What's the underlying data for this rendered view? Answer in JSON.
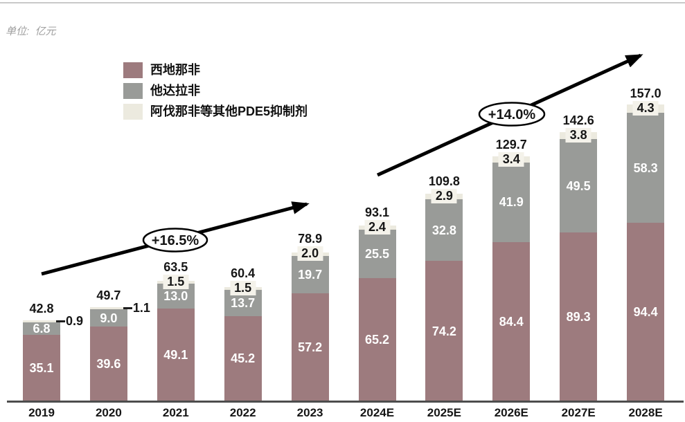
{
  "unit_label": "单位:  亿元",
  "chart_data": {
    "type": "bar",
    "stacked": true,
    "unit": "亿元",
    "legend_position": "top-left",
    "grid": false,
    "y_axis_visible": false,
    "categories": [
      "2019",
      "2020",
      "2021",
      "2022",
      "2023",
      "2024E",
      "2025E",
      "2026E",
      "2027E",
      "2028E"
    ],
    "series": [
      {
        "key": "sildenafil",
        "name": "西地那非",
        "color": "#9d7b7e",
        "values": [
          35.1,
          39.6,
          49.1,
          45.2,
          57.2,
          65.2,
          74.2,
          84.4,
          89.3,
          94.4
        ]
      },
      {
        "key": "tadalafil",
        "name": "他达拉非",
        "color": "#999b98",
        "values": [
          6.8,
          9.0,
          13.0,
          13.7,
          19.7,
          25.5,
          32.8,
          41.9,
          49.5,
          58.3
        ]
      },
      {
        "key": "avanafil-other-pde5",
        "name": "阿伐那非等其他PDE5抑制剂",
        "color": "#eceadf",
        "values": [
          0.9,
          1.1,
          1.5,
          1.5,
          2.0,
          2.4,
          2.9,
          3.4,
          3.8,
          4.3
        ]
      }
    ],
    "totals": [
      42.8,
      49.7,
      63.5,
      60.4,
      78.9,
      93.1,
      109.8,
      129.7,
      142.6,
      157.0
    ],
    "annotations": [
      {
        "label": "+16.5%",
        "note": "CAGR 2019-2023 trend arrow"
      },
      {
        "label": "+14.0%",
        "note": "CAGR 2024E-2028E trend arrow"
      }
    ]
  }
}
